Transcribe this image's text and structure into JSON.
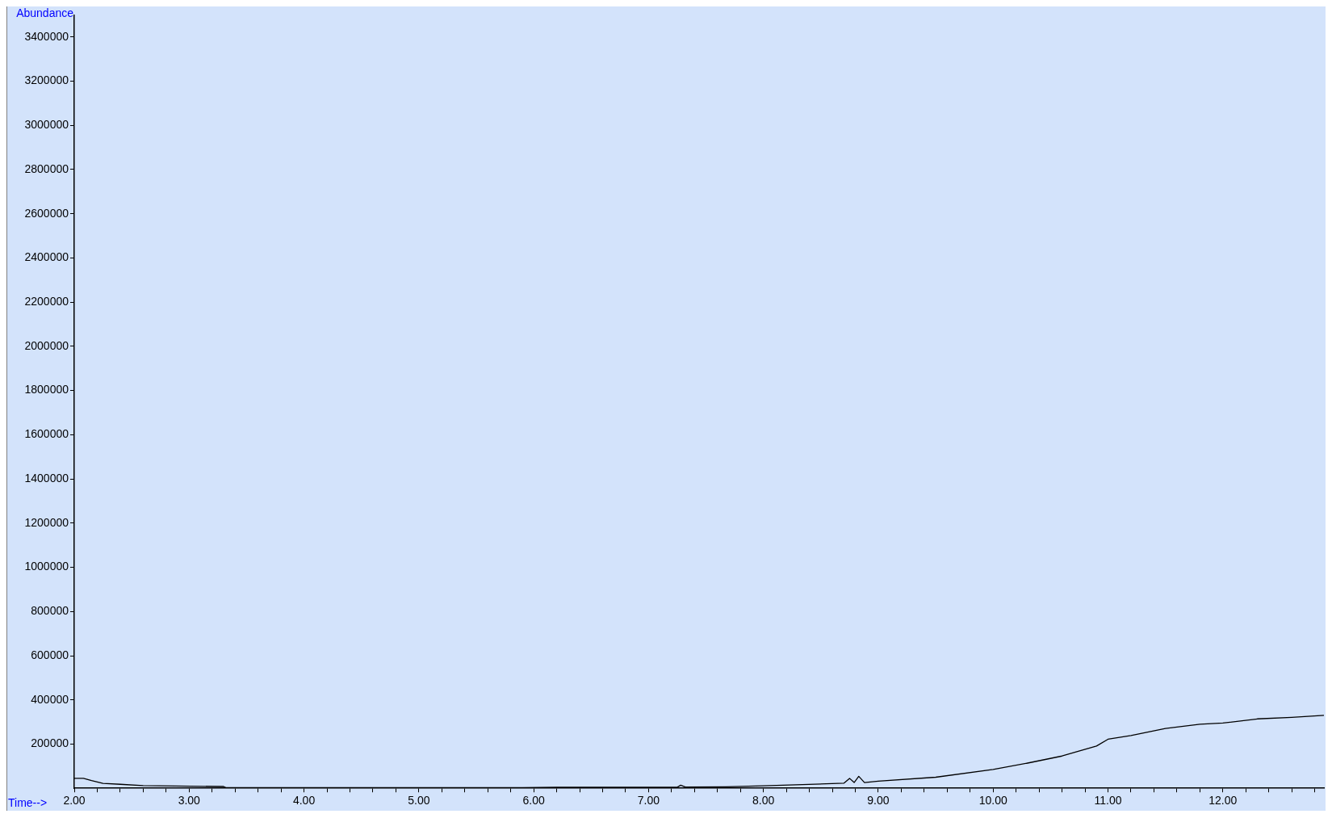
{
  "chart_data": {
    "type": "line",
    "xlabel": "Time-->",
    "ylabel": "Abundance",
    "xlim": [
      2,
      12.88
    ],
    "ylim": [
      0,
      3500000
    ],
    "xticks": [
      {
        "value": 2,
        "label": "2.00"
      },
      {
        "value": 2.2,
        "label": null
      },
      {
        "value": 2.4,
        "label": null
      },
      {
        "value": 2.6,
        "label": null
      },
      {
        "value": 2.8,
        "label": null
      },
      {
        "value": 3,
        "label": "3.00"
      },
      {
        "value": 3.2,
        "label": null
      },
      {
        "value": 3.4,
        "label": null
      },
      {
        "value": 3.6,
        "label": null
      },
      {
        "value": 3.8,
        "label": null
      },
      {
        "value": 4,
        "label": "4.00"
      },
      {
        "value": 4.2,
        "label": null
      },
      {
        "value": 4.4,
        "label": null
      },
      {
        "value": 4.6,
        "label": null
      },
      {
        "value": 4.8,
        "label": null
      },
      {
        "value": 5,
        "label": "5.00"
      },
      {
        "value": 5.2,
        "label": null
      },
      {
        "value": 5.4,
        "label": null
      },
      {
        "value": 5.6,
        "label": null
      },
      {
        "value": 5.8,
        "label": null
      },
      {
        "value": 6,
        "label": "6.00"
      },
      {
        "value": 6.2,
        "label": null
      },
      {
        "value": 6.4,
        "label": null
      },
      {
        "value": 6.6,
        "label": null
      },
      {
        "value": 6.8,
        "label": null
      },
      {
        "value": 7,
        "label": "7.00"
      },
      {
        "value": 7.2,
        "label": null
      },
      {
        "value": 7.4,
        "label": null
      },
      {
        "value": 7.6,
        "label": null
      },
      {
        "value": 7.8,
        "label": null
      },
      {
        "value": 8,
        "label": "8.00"
      },
      {
        "value": 8.2,
        "label": null
      },
      {
        "value": 8.4,
        "label": null
      },
      {
        "value": 8.6,
        "label": null
      },
      {
        "value": 8.8,
        "label": null
      },
      {
        "value": 9,
        "label": "9.00"
      },
      {
        "value": 9.2,
        "label": null
      },
      {
        "value": 9.4,
        "label": null
      },
      {
        "value": 9.6,
        "label": null
      },
      {
        "value": 9.8,
        "label": null
      },
      {
        "value": 10,
        "label": "10.00"
      },
      {
        "value": 10.2,
        "label": null
      },
      {
        "value": 10.4,
        "label": null
      },
      {
        "value": 10.6,
        "label": null
      },
      {
        "value": 10.8,
        "label": null
      },
      {
        "value": 11,
        "label": "11.00"
      },
      {
        "value": 11.2,
        "label": null
      },
      {
        "value": 11.4,
        "label": null
      },
      {
        "value": 11.6,
        "label": null
      },
      {
        "value": 11.8,
        "label": null
      },
      {
        "value": 12,
        "label": "12.00"
      },
      {
        "value": 12.2,
        "label": null
      },
      {
        "value": 12.4,
        "label": null
      },
      {
        "value": 12.6,
        "label": null
      },
      {
        "value": 12.8,
        "label": null
      }
    ],
    "yticks": [
      200000,
      400000,
      600000,
      800000,
      1000000,
      1200000,
      1400000,
      1600000,
      1800000,
      2000000,
      2200000,
      2400000,
      2600000,
      2800000,
      3000000,
      3200000,
      3400000
    ],
    "grid": false,
    "legend": false,
    "marker": "none",
    "line_style": "solid",
    "series": [
      {
        "color": "#000000",
        "x": [
          2,
          2.08,
          2.15,
          2.25,
          2.4,
          2.6,
          3.3,
          3.32,
          5.9,
          6.2,
          7.25,
          7.28,
          7.32,
          7.67,
          8,
          8.7,
          8.75,
          8.79,
          8.83,
          8.88,
          9,
          9.5,
          10,
          10.3,
          10.6,
          10.9,
          11,
          11.2,
          11.5,
          11.8,
          12,
          12.3,
          12.6,
          12.88
        ],
        "values": [
          45000,
          45000,
          35000,
          22000,
          18000,
          12000,
          8000,
          3000,
          3000,
          5000,
          5000,
          14000,
          6000,
          7000,
          11000,
          23000,
          45000,
          26000,
          54000,
          26000,
          32000,
          50000,
          85000,
          114000,
          146000,
          191000,
          222000,
          239000,
          271000,
          290000,
          295000,
          314000,
          321000,
          330000
        ]
      }
    ]
  }
}
